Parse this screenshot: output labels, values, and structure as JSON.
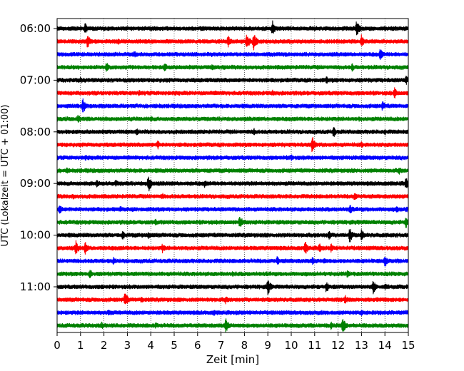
{
  "chart_data": {
    "type": "line",
    "title": "",
    "xlabel": "Zeit  [min]",
    "ylabel": "UTC (Lokalzeit = UTC + 01:00)",
    "xlim": [
      0,
      15
    ],
    "xticks": [
      "0",
      "1",
      "2",
      "3",
      "4",
      "5",
      "6",
      "7",
      "8",
      "9",
      "10",
      "11",
      "12",
      "13",
      "14",
      "15"
    ],
    "yticks": [
      {
        "label": "06:00",
        "row": 0
      },
      {
        "label": "07:00",
        "row": 4
      },
      {
        "label": "08:00",
        "row": 8
      },
      {
        "label": "09:00",
        "row": 12
      },
      {
        "label": "10:00",
        "row": 16
      },
      {
        "label": "11:00",
        "row": 20
      }
    ],
    "grid": {
      "x": true,
      "y": false,
      "style": "dotted"
    },
    "trace_colors": [
      "#000000",
      "#ff0000",
      "#0000ff",
      "#008000"
    ],
    "trace_count": 24,
    "trace_interval_min": 15,
    "events": [
      [
        [
          1.2,
          8
        ],
        [
          9.2,
          12
        ],
        [
          12.8,
          14
        ],
        [
          6.2,
          5
        ]
      ],
      [
        [
          1.3,
          10
        ],
        [
          7.3,
          9
        ],
        [
          8.1,
          12
        ],
        [
          8.4,
          14
        ],
        [
          13.0,
          10
        ],
        [
          2.6,
          5
        ]
      ],
      [
        [
          3.3,
          5
        ],
        [
          13.8,
          9
        ],
        [
          6.6,
          4
        ]
      ],
      [
        [
          2.1,
          8
        ],
        [
          4.6,
          7
        ],
        [
          6.6,
          5
        ],
        [
          12.6,
          6
        ]
      ],
      [
        [
          1.0,
          5
        ],
        [
          11.5,
          6
        ],
        [
          14.9,
          7
        ]
      ],
      [
        [
          3.5,
          5
        ],
        [
          9.2,
          5
        ],
        [
          14.4,
          9
        ]
      ],
      [
        [
          1.1,
          12
        ],
        [
          13.9,
          8
        ],
        [
          4.4,
          4
        ]
      ],
      [
        [
          0.9,
          7
        ],
        [
          4.0,
          5
        ],
        [
          12.9,
          4
        ]
      ],
      [
        [
          3.4,
          5
        ],
        [
          8.4,
          6
        ],
        [
          11.8,
          9
        ],
        [
          14.0,
          5
        ]
      ],
      [
        [
          4.3,
          7
        ],
        [
          10.9,
          13
        ],
        [
          13.0,
          5
        ]
      ],
      [
        [
          1.2,
          5
        ],
        [
          10.0,
          6
        ],
        [
          13.0,
          5
        ]
      ],
      [
        [
          0.4,
          5
        ],
        [
          6.4,
          4
        ],
        [
          14.6,
          6
        ]
      ],
      [
        [
          1.7,
          6
        ],
        [
          2.5,
          6
        ],
        [
          3.9,
          14
        ],
        [
          6.3,
          6
        ],
        [
          14.9,
          10
        ]
      ],
      [
        [
          0.7,
          5
        ],
        [
          4.5,
          5
        ],
        [
          12.7,
          7
        ]
      ],
      [
        [
          0.1,
          8
        ],
        [
          2.7,
          5
        ],
        [
          12.5,
          8
        ],
        [
          14.5,
          6
        ],
        [
          14.9,
          5
        ]
      ],
      [
        [
          7.8,
          11
        ],
        [
          14.9,
          9
        ],
        [
          4.2,
          5
        ]
      ],
      [
        [
          2.8,
          7
        ],
        [
          3.9,
          6
        ],
        [
          11.6,
          8
        ],
        [
          12.5,
          11
        ],
        [
          13.0,
          9
        ]
      ],
      [
        [
          0.8,
          11
        ],
        [
          1.2,
          9
        ],
        [
          4.5,
          7
        ],
        [
          10.6,
          10
        ],
        [
          11.2,
          8
        ],
        [
          11.7,
          7
        ]
      ],
      [
        [
          2.4,
          6
        ],
        [
          9.4,
          7
        ],
        [
          10.9,
          6
        ],
        [
          11.4,
          5
        ],
        [
          14.0,
          9
        ]
      ],
      [
        [
          1.4,
          8
        ],
        [
          12.4,
          6
        ],
        [
          7.5,
          4
        ]
      ],
      [
        [
          9.0,
          12
        ],
        [
          11.5,
          9
        ],
        [
          13.5,
          11
        ],
        [
          14.0,
          6
        ],
        [
          1.9,
          4
        ]
      ],
      [
        [
          2.9,
          12
        ],
        [
          3.6,
          6
        ],
        [
          7.2,
          6
        ],
        [
          12.3,
          7
        ]
      ],
      [
        [
          2.2,
          6
        ],
        [
          6.7,
          5
        ],
        [
          13.0,
          5
        ]
      ],
      [
        [
          1.9,
          6
        ],
        [
          7.2,
          11
        ],
        [
          12.2,
          13
        ],
        [
          4.2,
          5
        ],
        [
          11.7,
          6
        ]
      ]
    ]
  }
}
